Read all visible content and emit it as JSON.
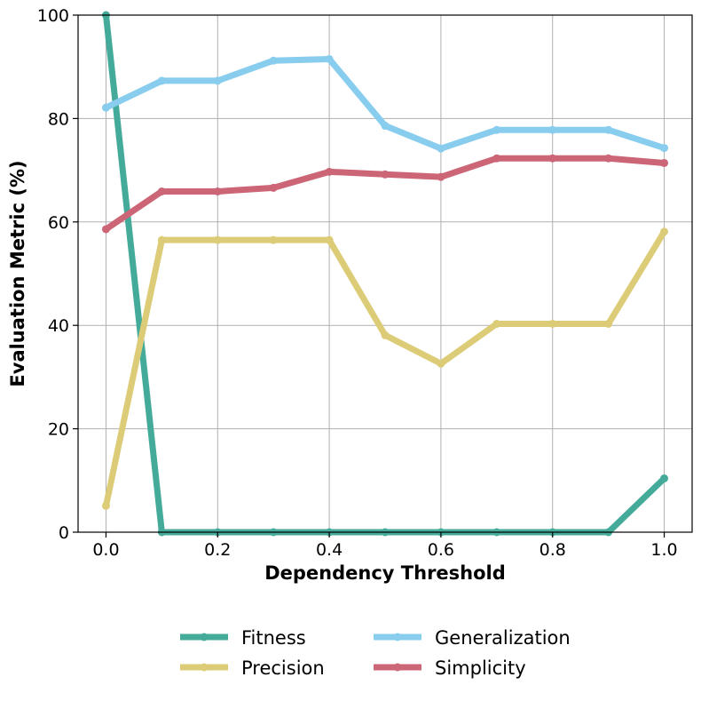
{
  "chart_data": {
    "type": "line",
    "title": "",
    "xlabel": "Dependency Threshold",
    "ylabel": "Evaluation Metric (%)",
    "xlim": [
      -0.05,
      1.05
    ],
    "ylim": [
      0,
      100
    ],
    "x_ticks": [
      0.0,
      0.2,
      0.4,
      0.6,
      0.8,
      1.0
    ],
    "x_tick_labels": [
      "0.0",
      "0.2",
      "0.4",
      "0.6",
      "0.8",
      "1.0"
    ],
    "y_ticks": [
      0,
      20,
      40,
      60,
      80,
      100
    ],
    "y_tick_labels": [
      "0",
      "20",
      "40",
      "60",
      "80",
      "100"
    ],
    "grid": true,
    "legend_placement": "bottom-center, below plot, 2 columns",
    "x": [
      0.0,
      0.1,
      0.2,
      0.3,
      0.4,
      0.5,
      0.6,
      0.7,
      0.8,
      0.9,
      1.0
    ],
    "series": [
      {
        "name": "Fitness",
        "color": "#44aa99",
        "values": [
          100,
          0,
          0,
          0,
          0,
          0,
          0,
          0,
          0,
          0,
          10.4
        ]
      },
      {
        "name": "Precision",
        "color": "#ddcc77",
        "values": [
          5.1,
          56.5,
          56.5,
          56.5,
          56.5,
          38.1,
          32.6,
          40.3,
          40.3,
          40.3,
          58.1
        ]
      },
      {
        "name": "Generalization",
        "color": "#88ccee",
        "values": [
          82.1,
          87.3,
          87.3,
          91.2,
          91.5,
          78.6,
          74.2,
          77.8,
          77.8,
          77.8,
          74.3
        ]
      },
      {
        "name": "Simplicity",
        "color": "#cc6677",
        "values": [
          58.6,
          65.9,
          65.9,
          66.6,
          69.7,
          69.2,
          68.7,
          72.3,
          72.3,
          72.3,
          71.4
        ]
      }
    ]
  }
}
